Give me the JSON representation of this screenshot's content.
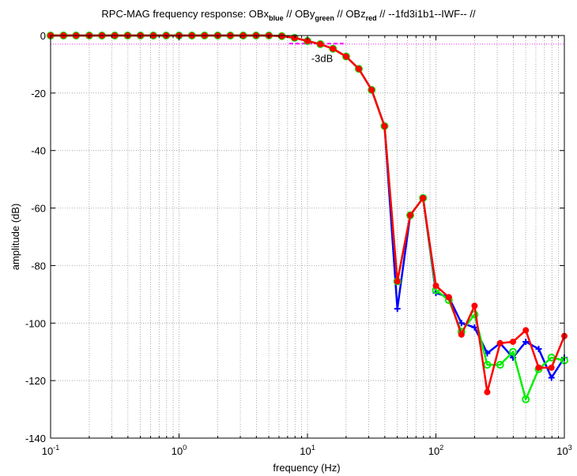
{
  "chart_data": {
    "type": "line",
    "title": {
      "prefix": "RPC-MAG frequency response: OBx",
      "sub1": "blue",
      "mid1": " // OBy",
      "sub2": "green",
      "mid2": " // OBz",
      "sub3": "red",
      "suffix": " // --1fd3i1b1--IWF-- //"
    },
    "xlabel": "frequency (Hz)",
    "ylabel": "amplitude (dB)",
    "xscale": "log",
    "xlim": [
      0.1,
      1000
    ],
    "ylim": [
      -140,
      0
    ],
    "yticks": [
      0,
      -20,
      -40,
      -60,
      -80,
      -100,
      -120,
      -140
    ],
    "xticks": [
      {
        "base": "10",
        "exp": "-1",
        "value": 0.1
      },
      {
        "base": "10",
        "exp": "0",
        "value": 1
      },
      {
        "base": "10",
        "exp": "1",
        "value": 10
      },
      {
        "base": "10",
        "exp": "2",
        "value": 100
      },
      {
        "base": "10",
        "exp": "3",
        "value": 1000
      }
    ],
    "grid": true,
    "reference_line": {
      "y": -3,
      "color": "#ff00ff"
    },
    "annotation": {
      "text": "-3dB",
      "x": 13,
      "y": -6.5,
      "marker_x": [
        7.2,
        20
      ],
      "marker_y": -2.8
    },
    "x": [
      0.1,
      0.126,
      0.158,
      0.2,
      0.251,
      0.316,
      0.398,
      0.501,
      0.631,
      0.794,
      1,
      1.26,
      1.58,
      2,
      2.51,
      3.16,
      3.98,
      5.01,
      6.31,
      7.94,
      10,
      12.6,
      15.8,
      20,
      25.1,
      31.6,
      39.8,
      50.1,
      63.1,
      79.4,
      100,
      126,
      158,
      200,
      251,
      316,
      398,
      501,
      631,
      794,
      1000
    ],
    "series": [
      {
        "color": "#0000ff",
        "marker": "plus",
        "values": [
          0,
          0,
          0,
          0,
          0,
          0,
          0,
          0,
          0,
          0,
          0,
          0,
          0,
          0,
          0,
          0,
          0,
          0,
          -0.2,
          -0.8,
          -1.9,
          -3,
          -4.6,
          -7.3,
          -11.6,
          -18.9,
          -31.5,
          -95,
          -62.5,
          -56.5,
          -89.5,
          -91,
          -100,
          -101.5,
          -110.5,
          -107,
          -112,
          -106.5,
          -109,
          -119,
          -112
        ]
      },
      {
        "color": "#00ee00",
        "marker": "circle",
        "values": [
          0,
          0,
          0,
          0,
          0,
          0,
          0,
          0,
          0,
          0,
          0,
          0,
          0,
          0,
          0,
          0,
          0,
          0,
          -0.2,
          -0.8,
          -1.9,
          -3,
          -4.6,
          -7.3,
          -11.6,
          -18.9,
          -31.5,
          -85.5,
          -62.5,
          -56.5,
          -88.5,
          -92,
          -103,
          -97,
          -114.5,
          -114.5,
          -110,
          -126.5,
          -116,
          -112,
          -113
        ]
      },
      {
        "color": "#ff0000",
        "marker": "dot",
        "values": [
          0,
          0,
          0,
          0,
          0,
          0,
          0,
          0,
          0,
          0,
          0,
          0,
          0,
          0,
          0,
          0,
          0,
          0,
          -0.2,
          -0.8,
          -1.9,
          -3,
          -4.6,
          -7.3,
          -11.6,
          -18.9,
          -31.5,
          -85.5,
          -62.5,
          -56.5,
          -87,
          -91,
          -104,
          -94,
          -124,
          -107,
          -106.5,
          -102.5,
          -115.5,
          -115.5,
          -104.5
        ]
      }
    ]
  }
}
